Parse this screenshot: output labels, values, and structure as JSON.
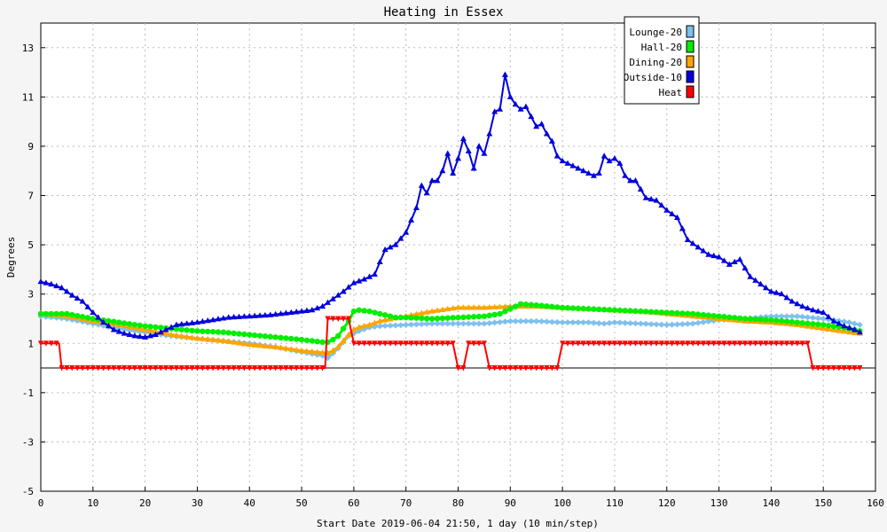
{
  "chart_data": {
    "type": "line",
    "title": "Heating in Essex",
    "xlabel": "Start Date 2019-06-04 21:50, 1 day (10 min/step)",
    "ylabel": "Degrees",
    "xlim": [
      0,
      160
    ],
    "ylim": [
      -5,
      14
    ],
    "x_ticks": [
      0,
      10,
      20,
      30,
      40,
      50,
      60,
      70,
      80,
      90,
      100,
      110,
      120,
      130,
      140,
      150,
      160
    ],
    "y_ticks": [
      -5,
      -3,
      -1,
      1,
      3,
      5,
      7,
      9,
      11,
      13
    ],
    "grid": true,
    "legend_position": "top-right",
    "series": [
      {
        "name": "Lounge-20",
        "color": "#7ec0ee",
        "marker": "diamond",
        "points": [
          [
            0,
            2.1
          ],
          [
            5,
            2.0
          ],
          [
            10,
            1.8
          ],
          [
            15,
            1.6
          ],
          [
            20,
            1.45
          ],
          [
            25,
            1.3
          ],
          [
            30,
            1.2
          ],
          [
            35,
            1.1
          ],
          [
            40,
            1.0
          ],
          [
            45,
            0.85
          ],
          [
            50,
            0.65
          ],
          [
            54,
            0.5
          ],
          [
            55,
            0.4
          ],
          [
            57,
            0.8
          ],
          [
            59,
            1.3
          ],
          [
            61,
            1.5
          ],
          [
            63,
            1.65
          ],
          [
            65,
            1.7
          ],
          [
            70,
            1.75
          ],
          [
            75,
            1.8
          ],
          [
            80,
            1.8
          ],
          [
            85,
            1.8
          ],
          [
            90,
            1.9
          ],
          [
            95,
            1.9
          ],
          [
            100,
            1.85
          ],
          [
            105,
            1.85
          ],
          [
            108,
            1.8
          ],
          [
            110,
            1.85
          ],
          [
            115,
            1.8
          ],
          [
            120,
            1.75
          ],
          [
            125,
            1.8
          ],
          [
            130,
            1.95
          ],
          [
            135,
            2.0
          ],
          [
            140,
            2.1
          ],
          [
            145,
            2.1
          ],
          [
            150,
            2.0
          ],
          [
            155,
            1.85
          ],
          [
            157,
            1.75
          ]
        ]
      },
      {
        "name": "Hall-20",
        "color": "#00ee00",
        "marker": "circle",
        "points": [
          [
            0,
            2.2
          ],
          [
            5,
            2.2
          ],
          [
            10,
            2.0
          ],
          [
            15,
            1.85
          ],
          [
            20,
            1.7
          ],
          [
            25,
            1.6
          ],
          [
            30,
            1.5
          ],
          [
            35,
            1.45
          ],
          [
            40,
            1.35
          ],
          [
            45,
            1.25
          ],
          [
            50,
            1.15
          ],
          [
            54,
            1.05
          ],
          [
            55,
            1.05
          ],
          [
            56,
            1.15
          ],
          [
            57,
            1.3
          ],
          [
            58,
            1.6
          ],
          [
            59,
            1.9
          ],
          [
            60,
            2.3
          ],
          [
            61,
            2.35
          ],
          [
            63,
            2.3
          ],
          [
            65,
            2.2
          ],
          [
            68,
            2.05
          ],
          [
            70,
            2.05
          ],
          [
            75,
            2.0
          ],
          [
            80,
            2.05
          ],
          [
            85,
            2.1
          ],
          [
            88,
            2.2
          ],
          [
            90,
            2.4
          ],
          [
            92,
            2.6
          ],
          [
            95,
            2.55
          ],
          [
            100,
            2.45
          ],
          [
            105,
            2.4
          ],
          [
            110,
            2.35
          ],
          [
            115,
            2.3
          ],
          [
            120,
            2.25
          ],
          [
            125,
            2.2
          ],
          [
            130,
            2.1
          ],
          [
            135,
            2.0
          ],
          [
            140,
            1.95
          ],
          [
            145,
            1.85
          ],
          [
            150,
            1.75
          ],
          [
            155,
            1.6
          ],
          [
            157,
            1.5
          ]
        ]
      },
      {
        "name": "Dining-20",
        "color": "#ffa500",
        "marker": "triangle",
        "points": [
          [
            0,
            2.2
          ],
          [
            5,
            2.1
          ],
          [
            10,
            1.9
          ],
          [
            15,
            1.75
          ],
          [
            20,
            1.55
          ],
          [
            25,
            1.35
          ],
          [
            30,
            1.2
          ],
          [
            35,
            1.1
          ],
          [
            40,
            0.95
          ],
          [
            45,
            0.85
          ],
          [
            50,
            0.7
          ],
          [
            55,
            0.6
          ],
          [
            56,
            0.7
          ],
          [
            57,
            0.85
          ],
          [
            58,
            1.1
          ],
          [
            59,
            1.35
          ],
          [
            60,
            1.55
          ],
          [
            61,
            1.65
          ],
          [
            63,
            1.75
          ],
          [
            65,
            1.9
          ],
          [
            70,
            2.1
          ],
          [
            75,
            2.3
          ],
          [
            80,
            2.45
          ],
          [
            85,
            2.45
          ],
          [
            90,
            2.5
          ],
          [
            95,
            2.5
          ],
          [
            100,
            2.45
          ],
          [
            105,
            2.4
          ],
          [
            110,
            2.35
          ],
          [
            115,
            2.3
          ],
          [
            120,
            2.2
          ],
          [
            125,
            2.1
          ],
          [
            130,
            2.0
          ],
          [
            135,
            1.9
          ],
          [
            140,
            1.85
          ],
          [
            145,
            1.75
          ],
          [
            150,
            1.6
          ],
          [
            155,
            1.45
          ],
          [
            157,
            1.4
          ]
        ]
      },
      {
        "name": "Outside-10",
        "color": "#0000dd",
        "marker": "triangle",
        "points": [
          [
            0,
            3.5
          ],
          [
            2,
            3.4
          ],
          [
            4,
            3.25
          ],
          [
            6,
            2.95
          ],
          [
            8,
            2.7
          ],
          [
            10,
            2.25
          ],
          [
            12,
            1.85
          ],
          [
            14,
            1.55
          ],
          [
            16,
            1.4
          ],
          [
            18,
            1.3
          ],
          [
            20,
            1.25
          ],
          [
            22,
            1.35
          ],
          [
            24,
            1.55
          ],
          [
            26,
            1.75
          ],
          [
            28,
            1.8
          ],
          [
            30,
            1.85
          ],
          [
            33,
            1.95
          ],
          [
            36,
            2.05
          ],
          [
            40,
            2.1
          ],
          [
            44,
            2.15
          ],
          [
            48,
            2.25
          ],
          [
            52,
            2.35
          ],
          [
            54,
            2.5
          ],
          [
            56,
            2.8
          ],
          [
            58,
            3.1
          ],
          [
            60,
            3.45
          ],
          [
            62,
            3.6
          ],
          [
            64,
            3.8
          ],
          [
            66,
            4.8
          ],
          [
            68,
            5.0
          ],
          [
            70,
            5.5
          ],
          [
            71,
            6.0
          ],
          [
            72,
            6.5
          ],
          [
            73,
            7.4
          ],
          [
            74,
            7.1
          ],
          [
            75,
            7.6
          ],
          [
            76,
            7.6
          ],
          [
            77,
            8.0
          ],
          [
            78,
            8.7
          ],
          [
            79,
            7.9
          ],
          [
            80,
            8.5
          ],
          [
            81,
            9.3
          ],
          [
            82,
            8.8
          ],
          [
            83,
            8.1
          ],
          [
            84,
            9.0
          ],
          [
            85,
            8.7
          ],
          [
            86,
            9.5
          ],
          [
            87,
            10.4
          ],
          [
            88,
            10.5
          ],
          [
            89,
            11.9
          ],
          [
            90,
            11.0
          ],
          [
            91,
            10.7
          ],
          [
            92,
            10.5
          ],
          [
            93,
            10.6
          ],
          [
            94,
            10.2
          ],
          [
            95,
            9.8
          ],
          [
            96,
            9.9
          ],
          [
            97,
            9.5
          ],
          [
            98,
            9.2
          ],
          [
            99,
            8.6
          ],
          [
            100,
            8.4
          ],
          [
            102,
            8.2
          ],
          [
            104,
            8.0
          ],
          [
            106,
            7.8
          ],
          [
            107,
            7.9
          ],
          [
            108,
            8.6
          ],
          [
            109,
            8.4
          ],
          [
            110,
            8.5
          ],
          [
            111,
            8.3
          ],
          [
            112,
            7.8
          ],
          [
            113,
            7.6
          ],
          [
            114,
            7.6
          ],
          [
            116,
            6.9
          ],
          [
            118,
            6.8
          ],
          [
            120,
            6.4
          ],
          [
            122,
            6.1
          ],
          [
            124,
            5.2
          ],
          [
            126,
            4.9
          ],
          [
            128,
            4.6
          ],
          [
            130,
            4.5
          ],
          [
            132,
            4.2
          ],
          [
            134,
            4.4
          ],
          [
            136,
            3.7
          ],
          [
            138,
            3.4
          ],
          [
            140,
            3.1
          ],
          [
            142,
            3.0
          ],
          [
            144,
            2.7
          ],
          [
            146,
            2.5
          ],
          [
            148,
            2.35
          ],
          [
            150,
            2.25
          ],
          [
            152,
            1.9
          ],
          [
            154,
            1.7
          ],
          [
            156,
            1.55
          ],
          [
            157,
            1.45
          ]
        ]
      },
      {
        "name": "Heat",
        "color": "#ff0000",
        "marker": "square",
        "points": [
          [
            0,
            1.0
          ],
          [
            3.5,
            1.0
          ],
          [
            4,
            0.0
          ],
          [
            54.5,
            0.0
          ],
          [
            55,
            2.0
          ],
          [
            59,
            2.0
          ],
          [
            60,
            1.0
          ],
          [
            79,
            1.0
          ],
          [
            80,
            0.0
          ],
          [
            81,
            0.0
          ],
          [
            82,
            1.0
          ],
          [
            85,
            1.0
          ],
          [
            86,
            0.0
          ],
          [
            99,
            0.0
          ],
          [
            100,
            1.0
          ],
          [
            147,
            1.0
          ],
          [
            148,
            0.0
          ],
          [
            157,
            0.0
          ]
        ]
      }
    ]
  }
}
